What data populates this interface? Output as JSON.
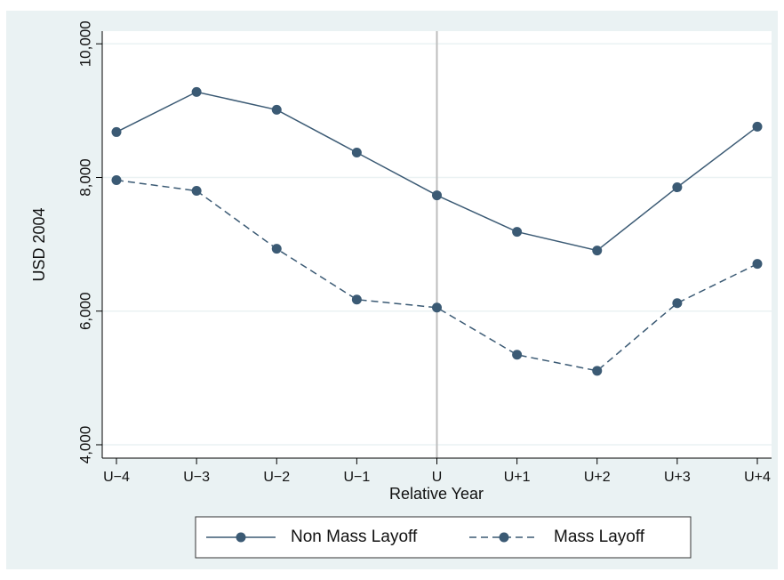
{
  "chart_data": {
    "type": "line",
    "categories": [
      "U−4",
      "U−3",
      "U−2",
      "U−1",
      "U",
      "U+1",
      "U+2",
      "U+3",
      "U+4"
    ],
    "series": [
      {
        "name": "Non Mass Layoff",
        "color": "#3b5a74",
        "dash": "solid",
        "values": [
          8680,
          9280,
          9013,
          8373,
          7733,
          7187,
          6907,
          7853,
          8760
        ]
      },
      {
        "name": "Mass Layoff",
        "color": "#3b5a74",
        "dash": "dashed",
        "values": [
          7960,
          7800,
          6933,
          6173,
          6053,
          5347,
          5107,
          6120,
          6707
        ]
      }
    ],
    "ylim": [
      3800,
      10190
    ],
    "yticks": [
      {
        "value": 4000,
        "label": "4,000"
      },
      {
        "value": 6000,
        "label": "6,000"
      },
      {
        "value": 8000,
        "label": "8,000"
      },
      {
        "value": 10000,
        "label": "10,000"
      }
    ],
    "ylabel": "USD 2004",
    "xlabel": "Relative Year",
    "grid": true,
    "vline_at": "U",
    "legend": "bottom"
  }
}
